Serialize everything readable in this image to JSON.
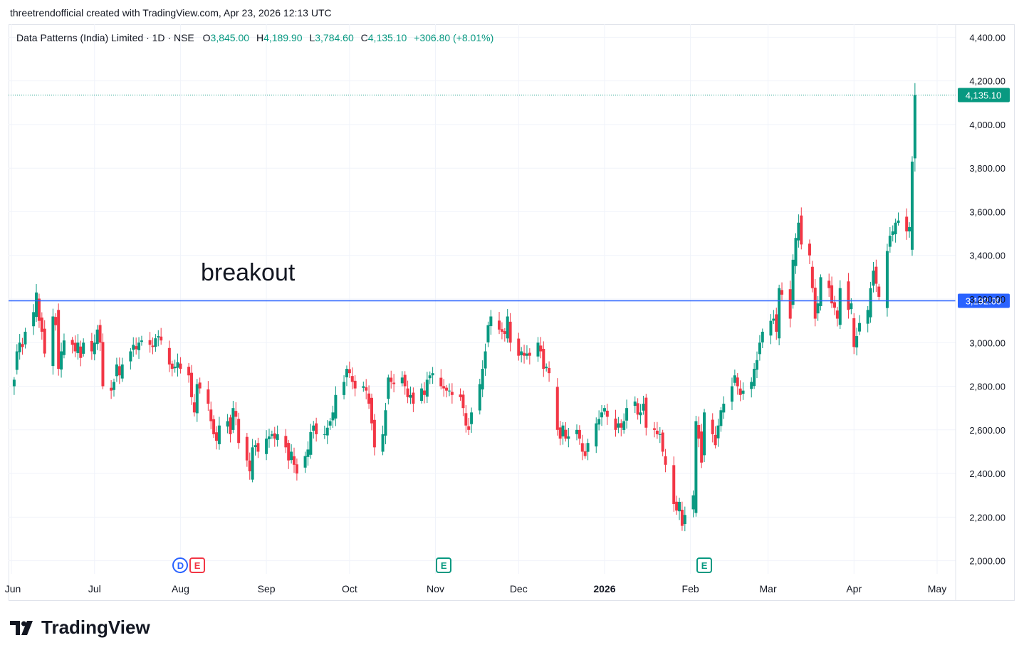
{
  "byline": "threetrendofficial created with TradingView.com, Apr 23, 2026 12:13 UTC",
  "legend": {
    "symbol": "Data Patterns (India) Limited · 1D · NSE",
    "o_label": "O",
    "o_value": "3,845.00",
    "h_label": "H",
    "h_value": "4,189.90",
    "l_label": "L",
    "l_value": "3,784.60",
    "c_label": "C",
    "c_value": "4,135.10",
    "change": "+306.80 (+8.01%)"
  },
  "brand": "TradingView",
  "colors": {
    "up": "#089981",
    "down": "#f23645",
    "line": "#2962ff",
    "grid": "#f0f3fa"
  },
  "chart_data": {
    "type": "candlestick",
    "annotation": "breakout",
    "horizontal_line": {
      "value": 3192,
      "label": "3,192.00"
    },
    "last_price": {
      "value": 4135.1,
      "label": "4,135.10"
    },
    "ylim": [
      1940,
      4460
    ],
    "y_ticks": [
      "2,000.00",
      "2,200.00",
      "2,400.00",
      "2,600.00",
      "2,800.00",
      "3,000.00",
      "3,200.00",
      "3,400.00",
      "3,600.00",
      "3,800.00",
      "4,000.00",
      "4,200.00",
      "4,400.00"
    ],
    "y_tick_values": [
      2000,
      2200,
      2400,
      2600,
      2800,
      3000,
      3200,
      3400,
      3600,
      3800,
      4000,
      4200,
      4400
    ],
    "x_ticks": [
      {
        "label": "Jun",
        "date": "2025-06-01"
      },
      {
        "label": "Jul",
        "date": "2025-07-01"
      },
      {
        "label": "Aug",
        "date": "2025-08-01"
      },
      {
        "label": "Sep",
        "date": "2025-09-01"
      },
      {
        "label": "Oct",
        "date": "2025-10-01"
      },
      {
        "label": "Nov",
        "date": "2025-11-01"
      },
      {
        "label": "Dec",
        "date": "2025-12-01"
      },
      {
        "label": "2026",
        "date": "2026-01-01",
        "bold": true
      },
      {
        "label": "Feb",
        "date": "2026-02-01"
      },
      {
        "label": "Mar",
        "date": "2026-03-01"
      },
      {
        "label": "Apr",
        "date": "2026-04-01"
      },
      {
        "label": "May",
        "date": "2026-05-01"
      }
    ],
    "events": [
      {
        "type": "D",
        "date": "2025-08-01"
      },
      {
        "type": "E",
        "date": "2025-08-04"
      },
      {
        "type": "E",
        "date": "2025-11-04"
      },
      {
        "type": "E",
        "date": "2026-02-06"
      }
    ],
    "closes": [
      2830,
      2960,
      3000,
      2980,
      3050,
      3140,
      3230,
      3100,
      3050,
      2950,
      3120,
      3080,
      2880,
      2960,
      3010,
      2990,
      2960,
      3000,
      2930,
      3000,
      2960,
      3000,
      3060,
      3000,
      2800,
      2780,
      2820,
      2900,
      2850,
      2900,
      2960,
      2990,
      2970,
      3000,
      3010,
      2990,
      2980,
      3020,
      3030,
      3010,
      2900,
      2880,
      2890,
      2910,
      2880,
      2850,
      2750,
      2680,
      2810,
      2790,
      2720,
      2640,
      2580,
      2550,
      2620,
      2640,
      2580,
      2700,
      2660,
      2540,
      2460,
      2410,
      2520,
      2530,
      2500,
      2560,
      2570,
      2580,
      2560,
      2580,
      2520,
      2460,
      2500,
      2440,
      2400,
      2480,
      2510,
      2590,
      2620,
      2580,
      2580,
      2610,
      2640,
      2680,
      2760,
      2820,
      2880,
      2860,
      2820,
      2790,
      2800,
      2780,
      2720,
      2630,
      2520,
      2580,
      2690,
      2840,
      2820,
      2810,
      2840,
      2800,
      2750,
      2760,
      2720,
      2790,
      2760,
      2830,
      2850,
      2860,
      2800,
      2790,
      2780,
      2780,
      2760,
      2750,
      2700,
      2620,
      2600,
      2680,
      2810,
      2880,
      2960,
      3080,
      3120,
      3060,
      3050,
      3040,
      3120,
      3000,
      2940,
      2960,
      2940,
      2950,
      2940,
      3000,
      2960,
      2880,
      2890,
      2860,
      2600,
      2560,
      2620,
      2560,
      2570,
      2600,
      2560,
      2500,
      2480,
      2540,
      2630,
      2650,
      2680,
      2700,
      2660,
      2600,
      2630,
      2610,
      2640,
      2700,
      2730,
      2670,
      2680,
      2720,
      2610,
      2600,
      2580,
      2580,
      2500,
      2440,
      2260,
      2230,
      2270,
      2160,
      2210,
      2300,
      2640,
      2560,
      2450,
      2680,
      2580,
      2530,
      2620,
      2690,
      2720,
      2800,
      2850,
      2800,
      2760,
      2780,
      2820,
      2880,
      2920,
      3000,
      3050,
      3100,
      3110,
      3050,
      3250,
      3220,
      3110,
      3380,
      3480,
      3550,
      3450,
      3400,
      3250,
      3110,
      3180,
      3300,
      3250,
      3180,
      3160,
      3110,
      3250,
      3150,
      3180,
      2980,
      3030,
      3090,
      3150,
      3250,
      3330,
      3270,
      3210,
      3420,
      3490,
      3510,
      3550,
      3560,
      3510,
      3530,
      3830,
      4135.1
    ]
  }
}
